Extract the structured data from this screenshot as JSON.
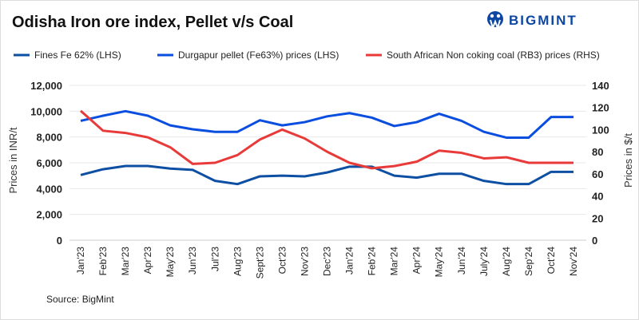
{
  "title": "Odisha Iron ore index, Pellet v/s Coal",
  "logo": {
    "text": "BIGMINT"
  },
  "source": "Source: BigMint",
  "chart_data": {
    "type": "line",
    "title": "Odisha Iron ore index, Pellet v/s Coal",
    "categories": [
      "Jan'23",
      "Feb'23",
      "Mar'23",
      "Apr'23",
      "May'23",
      "Jun'23",
      "Jul'23",
      "Aug'23",
      "Sept'23",
      "Oct'23",
      "Nov'23",
      "Dec'23",
      "Jan'24",
      "Feb'24",
      "Mar'24",
      "Apr'24",
      "May'24",
      "Jun'24",
      "July'24",
      "Aug'24",
      "Sep'24",
      "Oct'24",
      "Nov'24"
    ],
    "ylabel": "Prices in INR/t",
    "y2label": "Prices in $/t",
    "ylim": [
      0,
      12000
    ],
    "y2lim": [
      0,
      140
    ],
    "yticks": [
      "0",
      "2,000",
      "4,000",
      "6,000",
      "8,000",
      "10,000",
      "12,000"
    ],
    "y2ticks": [
      "0",
      "20",
      "40",
      "60",
      "80",
      "100",
      "120",
      "140"
    ],
    "grid": true,
    "legend": "top",
    "series": [
      {
        "name": "Fines Fe 62% (LHS)",
        "axis": "left",
        "color": "#0d4fa3",
        "values": [
          5050,
          5500,
          5750,
          5750,
          5550,
          5450,
          4600,
          4350,
          4950,
          5000,
          4950,
          5250,
          5700,
          5700,
          5000,
          4850,
          5150,
          5150,
          4600,
          4350,
          4350,
          5300,
          5300
        ]
      },
      {
        "name": "Durgapur pellet (Fe63%) prices (LHS)",
        "axis": "left",
        "color": "#0a4ee0",
        "values": [
          9250,
          9650,
          10000,
          9650,
          8900,
          8600,
          8400,
          8400,
          9300,
          8900,
          9150,
          9600,
          9850,
          9500,
          8850,
          9150,
          9800,
          9250,
          8400,
          7950,
          7950,
          9550,
          9550
        ]
      },
      {
        "name": "South African Non coking coal (RB3) prices (RHS)",
        "axis": "right",
        "color": "#e93a3a",
        "values": [
          117,
          99,
          97,
          93,
          84,
          69,
          70,
          77,
          91,
          100,
          92,
          80,
          70,
          65,
          67,
          71,
          81,
          79,
          74,
          75,
          70,
          70,
          70
        ]
      }
    ]
  }
}
